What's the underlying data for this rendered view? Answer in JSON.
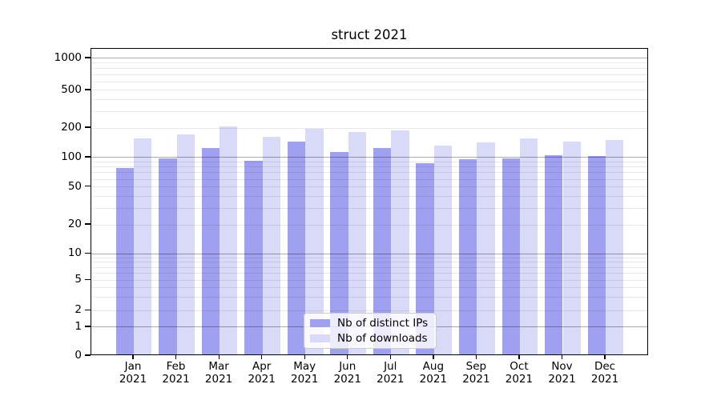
{
  "chart_data": {
    "type": "bar",
    "title": "struct 2021",
    "categories": [
      "Jan",
      "Feb",
      "Mar",
      "Apr",
      "May",
      "Jun",
      "Jul",
      "Aug",
      "Sep",
      "Oct",
      "Nov",
      "Dec"
    ],
    "category_year": "2021",
    "series": [
      {
        "name": "Nb of distinct IPs",
        "color": "#a0a0f0",
        "values": [
          76,
          94,
          121,
          90,
          139,
          110,
          121,
          85,
          92,
          95,
          102,
          100
        ]
      },
      {
        "name": "Nb of downloads",
        "color": "#d9d9f8",
        "values": [
          150,
          166,
          200,
          158,
          188,
          177,
          181,
          127,
          138,
          152,
          140,
          146
        ]
      }
    ],
    "yticks": [
      0,
      1,
      2,
      5,
      10,
      20,
      50,
      100,
      200,
      500,
      1000
    ],
    "yscale": "symlog",
    "ylim": [
      0,
      1270
    ],
    "grid": true,
    "legend_position": "lower center"
  }
}
